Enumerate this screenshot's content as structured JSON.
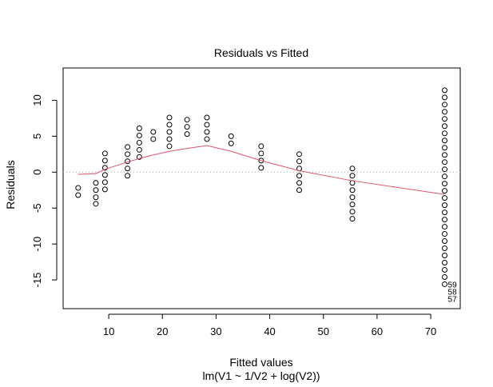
{
  "chart_data": {
    "type": "scatter",
    "title": "Residuals vs Fitted",
    "xlabel": "Fitted values",
    "subtitle": "lm(V1 ~ 1/V2 + log(V2))",
    "ylabel": "Residuals",
    "xlim": [
      1.5,
      75.5
    ],
    "ylim": [
      -19.0,
      14.5
    ],
    "x_ticks": [
      10,
      20,
      30,
      40,
      50,
      60,
      70
    ],
    "y_ticks": [
      -15,
      -10,
      -5,
      0,
      5,
      10
    ],
    "reference_line": {
      "y": 0,
      "style": "dotted",
      "color": "#aaaaaa"
    },
    "point_color": "#000000",
    "smoother_color": "#df536b",
    "points": [
      {
        "x": 4.3,
        "y": -2.2
      },
      {
        "x": 4.3,
        "y": -3.2
      },
      {
        "x": 7.6,
        "y": -1.5
      },
      {
        "x": 7.6,
        "y": -2.5
      },
      {
        "x": 7.6,
        "y": -3.5
      },
      {
        "x": 7.6,
        "y": -4.4
      },
      {
        "x": 9.3,
        "y": 2.6
      },
      {
        "x": 9.3,
        "y": 1.6
      },
      {
        "x": 9.3,
        "y": 0.6
      },
      {
        "x": 9.3,
        "y": -0.4
      },
      {
        "x": 9.3,
        "y": -1.4
      },
      {
        "x": 9.3,
        "y": -2.4
      },
      {
        "x": 13.5,
        "y": 3.5
      },
      {
        "x": 13.5,
        "y": 2.5
      },
      {
        "x": 13.5,
        "y": 1.5
      },
      {
        "x": 13.5,
        "y": 0.5
      },
      {
        "x": 13.5,
        "y": -0.5
      },
      {
        "x": 15.7,
        "y": 6.1
      },
      {
        "x": 15.7,
        "y": 5.1
      },
      {
        "x": 15.7,
        "y": 4.1
      },
      {
        "x": 15.7,
        "y": 3.1
      },
      {
        "x": 15.7,
        "y": 2.1
      },
      {
        "x": 18.3,
        "y": 5.6
      },
      {
        "x": 18.3,
        "y": 4.6
      },
      {
        "x": 21.3,
        "y": 7.6
      },
      {
        "x": 21.3,
        "y": 6.6
      },
      {
        "x": 21.3,
        "y": 5.6
      },
      {
        "x": 21.3,
        "y": 4.6
      },
      {
        "x": 21.3,
        "y": 3.6
      },
      {
        "x": 24.6,
        "y": 7.3
      },
      {
        "x": 24.6,
        "y": 6.3
      },
      {
        "x": 24.6,
        "y": 5.3
      },
      {
        "x": 28.3,
        "y": 7.6
      },
      {
        "x": 28.3,
        "y": 6.6
      },
      {
        "x": 28.3,
        "y": 5.6
      },
      {
        "x": 28.3,
        "y": 4.6
      },
      {
        "x": 32.8,
        "y": 5.0
      },
      {
        "x": 32.8,
        "y": 4.0
      },
      {
        "x": 38.4,
        "y": 3.6
      },
      {
        "x": 38.4,
        "y": 2.6
      },
      {
        "x": 38.4,
        "y": 1.6
      },
      {
        "x": 38.4,
        "y": 0.6
      },
      {
        "x": 45.5,
        "y": 2.5
      },
      {
        "x": 45.5,
        "y": 1.5
      },
      {
        "x": 45.5,
        "y": 0.5
      },
      {
        "x": 45.5,
        "y": -0.5
      },
      {
        "x": 45.5,
        "y": -1.5
      },
      {
        "x": 45.5,
        "y": -2.5
      },
      {
        "x": 55.4,
        "y": 0.5
      },
      {
        "x": 55.4,
        "y": -0.5
      },
      {
        "x": 55.4,
        "y": -1.5
      },
      {
        "x": 55.4,
        "y": -2.5
      },
      {
        "x": 55.4,
        "y": -3.5
      },
      {
        "x": 55.4,
        "y": -4.5
      },
      {
        "x": 55.4,
        "y": -5.5
      },
      {
        "x": 55.4,
        "y": -6.5
      },
      {
        "x": 72.6,
        "y": 11.4
      },
      {
        "x": 72.6,
        "y": 10.4
      },
      {
        "x": 72.6,
        "y": 9.4
      },
      {
        "x": 72.6,
        "y": 8.4
      },
      {
        "x": 72.6,
        "y": 7.4
      },
      {
        "x": 72.6,
        "y": 6.4
      },
      {
        "x": 72.6,
        "y": 5.4
      },
      {
        "x": 72.6,
        "y": 4.4
      },
      {
        "x": 72.6,
        "y": 3.4
      },
      {
        "x": 72.6,
        "y": 2.4
      },
      {
        "x": 72.6,
        "y": 1.4
      },
      {
        "x": 72.6,
        "y": 0.4
      },
      {
        "x": 72.6,
        "y": -0.6
      },
      {
        "x": 72.6,
        "y": -1.6
      },
      {
        "x": 72.6,
        "y": -2.6
      },
      {
        "x": 72.6,
        "y": -3.6
      },
      {
        "x": 72.6,
        "y": -4.6
      },
      {
        "x": 72.6,
        "y": -5.6
      },
      {
        "x": 72.6,
        "y": -6.6
      },
      {
        "x": 72.6,
        "y": -7.6
      },
      {
        "x": 72.6,
        "y": -8.6
      },
      {
        "x": 72.6,
        "y": -9.6
      },
      {
        "x": 72.6,
        "y": -10.6
      },
      {
        "x": 72.6,
        "y": -11.6
      },
      {
        "x": 72.6,
        "y": -12.6
      },
      {
        "x": 72.6,
        "y": -13.6
      },
      {
        "x": 72.6,
        "y": -14.6
      },
      {
        "x": 72.6,
        "y": -15.6
      }
    ],
    "point_labels": [
      {
        "text": "59",
        "x": 72.6,
        "y": -15.6
      },
      {
        "text": "58",
        "x": 72.6,
        "y": -16.6
      },
      {
        "text": "57",
        "x": 72.6,
        "y": -17.6
      }
    ],
    "smoother": {
      "x": [
        4.3,
        7.6,
        9.3,
        13.5,
        15.7,
        18.3,
        21.3,
        24.6,
        28.3,
        32.8,
        38.4,
        45.5,
        55.4,
        72.6
      ],
      "y": [
        -0.3,
        -0.2,
        0.4,
        1.4,
        1.9,
        2.4,
        2.9,
        3.3,
        3.7,
        2.9,
        1.6,
        0.2,
        -1.2,
        -3.1
      ]
    }
  }
}
